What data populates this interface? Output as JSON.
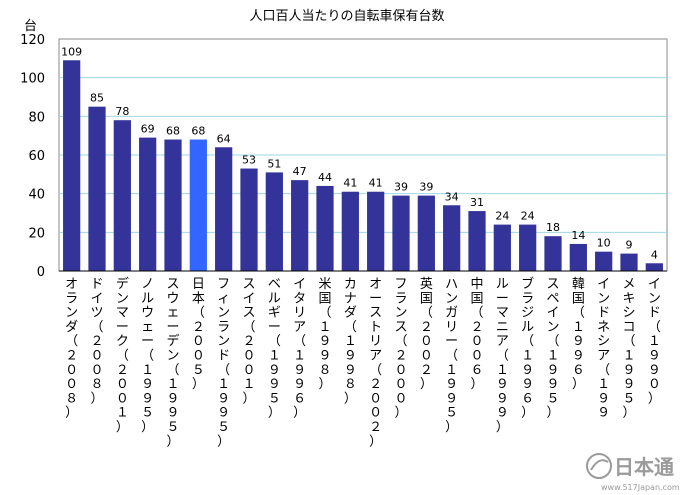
{
  "chart_data": {
    "type": "bar",
    "title": "人口百人当たりの自転車保有台数",
    "ylabel": "台",
    "ylim": [
      0,
      120
    ],
    "yticks": [
      0,
      20,
      40,
      60,
      80,
      100,
      120
    ],
    "grid": true,
    "bar_color": "#333399",
    "highlight_color": "#3366ff",
    "highlight_index": 5,
    "categories": [
      "オランダ（２００８）",
      "ドイツ（２００８）",
      "デンマーク（２００１）",
      "ノルウェー（１９９５）",
      "スウェーデン（１９９５）",
      "日本（２００５）",
      "フィンランド（１９９５）",
      "スイス（２００１）",
      "ベルギー（１９９５）",
      "イタリア（１９９６）",
      "米国（１９９８）",
      "カナダ（１９９８）",
      "オーストリア（２００２）",
      "フランス（２０００）",
      "英国（２００２）",
      "ハンガリー（１９９５）",
      "中国（２００６）",
      "ルーマニア（１９９９）",
      "ブラジル（１９９６）",
      "スペイン（１９９５）",
      "韓国（１９９６）",
      "インドネシア（１９９",
      "メキシコ（１９９５）",
      "インド（１９９０）"
    ],
    "values": [
      109,
      85,
      78,
      69,
      68,
      68,
      64,
      53,
      51,
      47,
      44,
      41,
      41,
      39,
      39,
      34,
      31,
      24,
      24,
      18,
      14,
      10,
      9,
      4
    ]
  },
  "watermark": {
    "text": "日本通",
    "url": "www.517Japan.com"
  }
}
